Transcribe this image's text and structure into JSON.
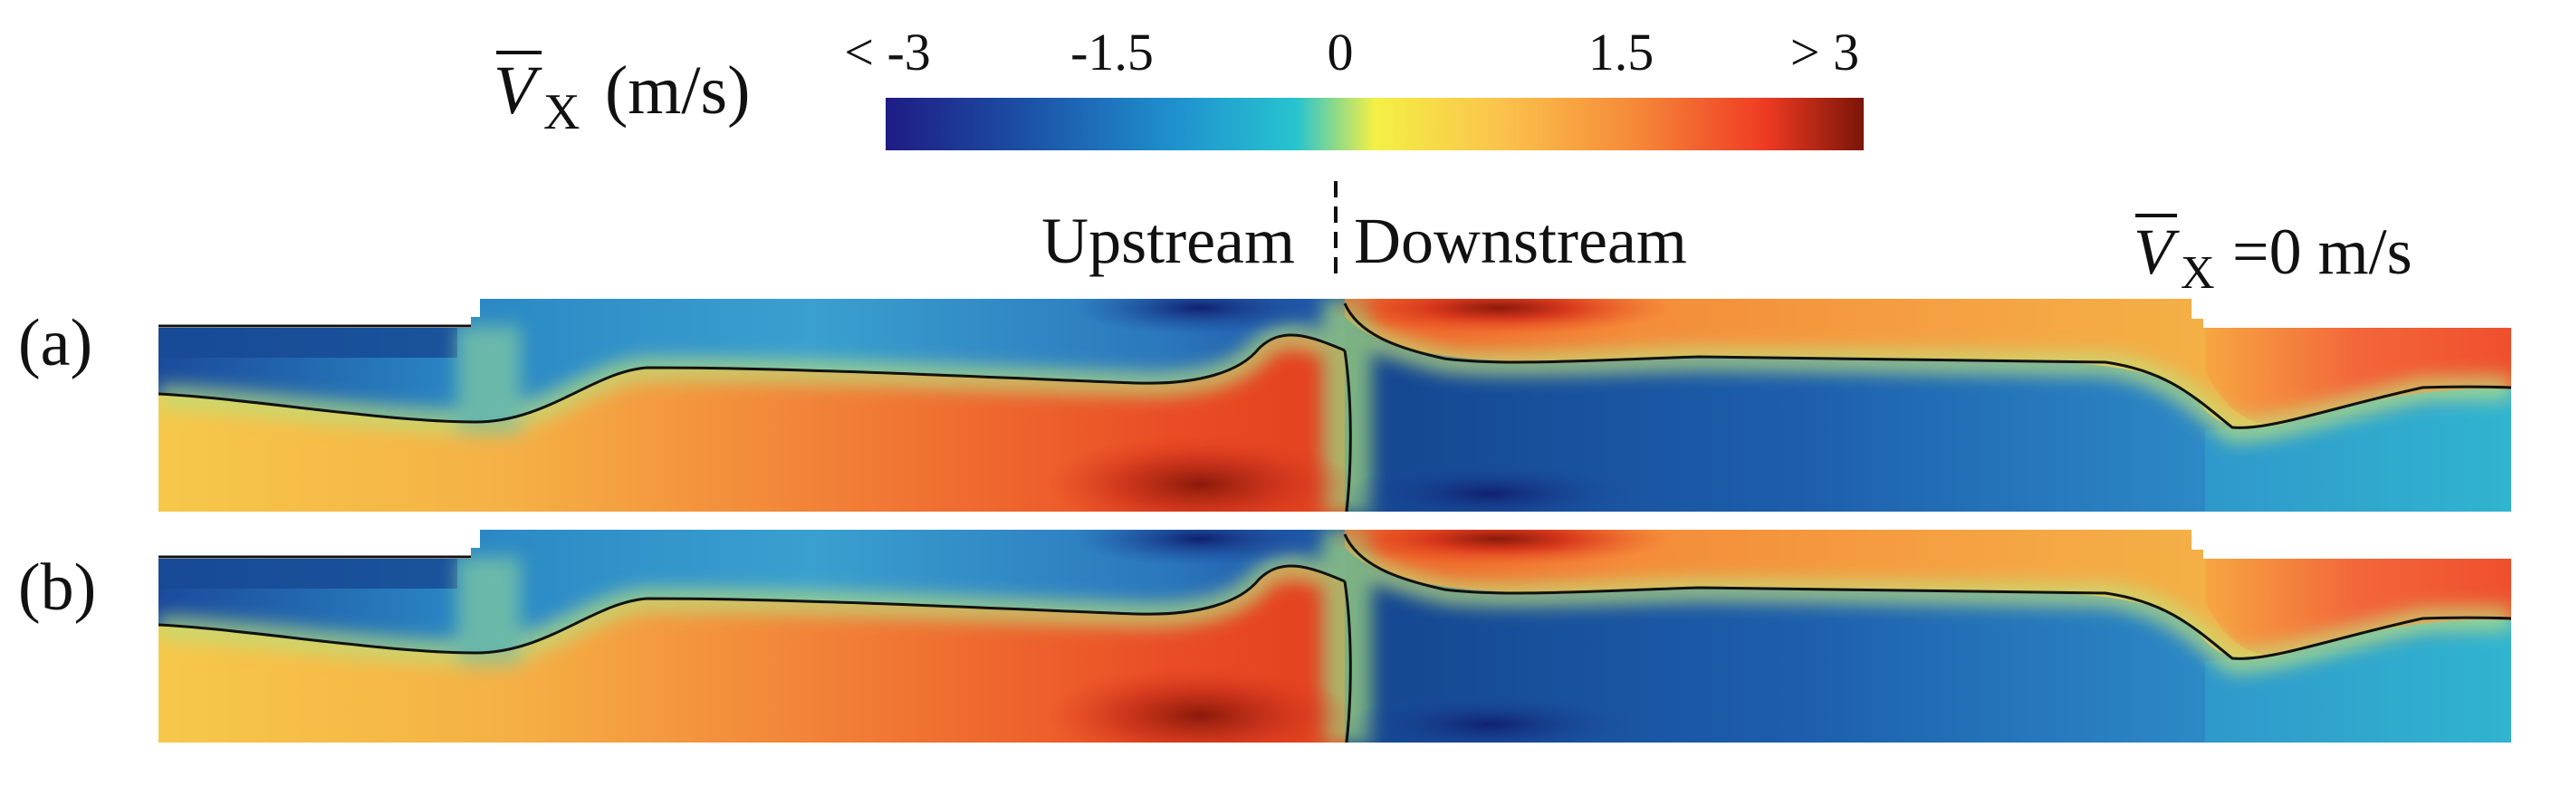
{
  "colorbar": {
    "symbol": "V",
    "subscript": "X",
    "unit": "(m/s)",
    "ticks": [
      "< -3",
      "-1.5",
      "0",
      "1.5",
      "> 3"
    ],
    "colors": [
      "#1e1c84",
      "#1c4fa6",
      "#1f93cf",
      "#27c4cf",
      "#f4f045",
      "#fbc24c",
      "#f68c3a",
      "#ef3a23",
      "#7a1508"
    ]
  },
  "section_labels": {
    "upstream": "Upstream",
    "downstream": "Downstream"
  },
  "annotation": {
    "symbol": "V",
    "subscript": "X",
    "text": "=0 m/s"
  },
  "panels": [
    {
      "label": "(a)"
    },
    {
      "label": "(b)"
    }
  ]
}
